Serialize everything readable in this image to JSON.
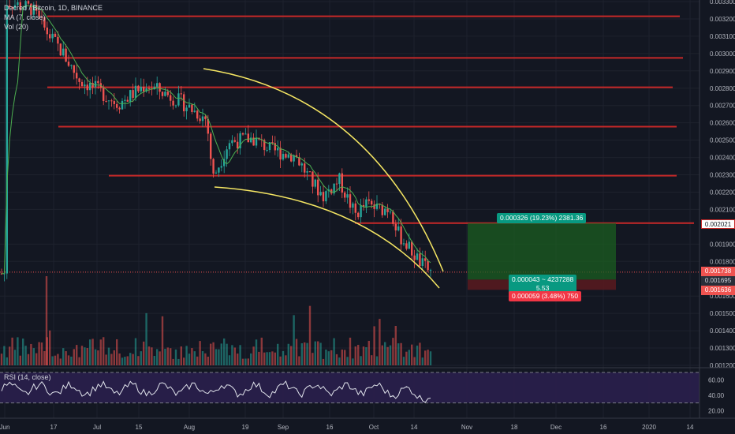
{
  "legend": {
    "title": "Decred / Bitcoin, 1D, BINANCE",
    "ma": "MA (7, close)",
    "vol": "Vol (20)",
    "rsi": "RSI (14, close)"
  },
  "colors": {
    "background": "#131722",
    "up": "#26a69a",
    "down": "#ef5350",
    "resistance": "#c62828",
    "channel": "#f5e663",
    "ma": "#4caf50",
    "rsi_band": "#2a1f4d",
    "profit_zone": "#1b5e20",
    "loss_zone": "#5a1a1f"
  },
  "price_axis": {
    "ticks": [
      "0.003300",
      "0.003200",
      "0.003100",
      "0.003000",
      "0.002900",
      "0.002800",
      "0.002700",
      "0.002600",
      "0.002500",
      "0.002400",
      "0.002300",
      "0.002200",
      "0.002100",
      "0.001900",
      "0.001800",
      "0.001600",
      "0.001500",
      "0.001400",
      "0.001300",
      "0.001200"
    ],
    "tags": {
      "target": "0.002021",
      "current": "0.001738",
      "entry": "0.001695",
      "stop": "0.001636"
    }
  },
  "rsi_axis": {
    "ticks": [
      "60.00",
      "40.00",
      "20.00"
    ]
  },
  "time_axis": {
    "labels": [
      "Jun",
      "17",
      "Jul",
      "15",
      "Aug",
      "19",
      "Sep",
      "16",
      "Oct",
      "14",
      "Nov",
      "18",
      "Dec",
      "16",
      "2020",
      "14"
    ]
  },
  "position": {
    "target_label": "0.000326 (19.23%) 2381.36",
    "entry_label_1": "0.000043 ~ 4237288",
    "entry_label_2": "5.53",
    "stop_label": "0.000059 (3.48%) 750"
  },
  "chart_data": {
    "type": "candlestick",
    "symbol": "Decred / Bitcoin",
    "interval": "1D",
    "exchange": "BINANCE",
    "current_price": 0.001738,
    "resistance_levels": [
      0.003215,
      0.002975,
      0.002805,
      0.002578,
      0.002295,
      0.002021
    ],
    "long_position": {
      "entry": 0.001695,
      "target": 0.002021,
      "stop": 0.001636
    },
    "rsi_levels": [
      70,
      30
    ]
  }
}
